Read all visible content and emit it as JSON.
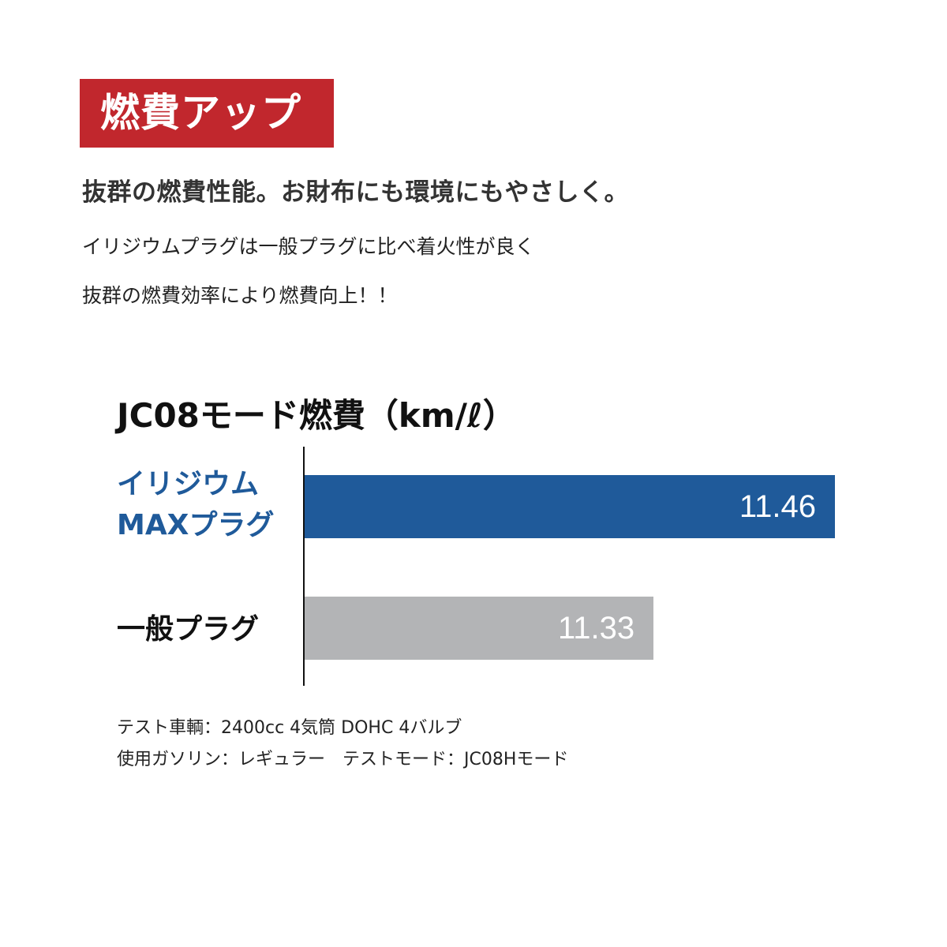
{
  "badge": "燃費アップ",
  "headline": "抜群の燃費性能。お財布にも環境にもやさしく。",
  "body_lines": [
    "イリジウムプラグは一般プラグに比べ着火性が良く",
    "抜群の燃費効率により燃費向上！！"
  ],
  "colors": {
    "badge": "#c1272d",
    "iridium": "#1f5a9a",
    "standard": "#b3b4b6"
  },
  "chart_data": {
    "type": "bar",
    "orientation": "horizontal",
    "title": "JC08モード燃費（km/ℓ）",
    "categories": [
      "イリジウムMAXプラグ",
      "一般プラグ"
    ],
    "category_lines": [
      [
        "イリジウム",
        "MAXプラグ"
      ],
      [
        "一般プラグ"
      ]
    ],
    "values": [
      11.46,
      11.33
    ],
    "value_labels": [
      "11.46",
      "11.33"
    ],
    "xlim": [
      11.08,
      11.46
    ],
    "grid": false
  },
  "notes": [
    "テスト車輌：2400cc 4気筒 DOHC 4バルブ",
    "使用ガソリン：レギュラー　テストモード：JC08Hモード"
  ]
}
